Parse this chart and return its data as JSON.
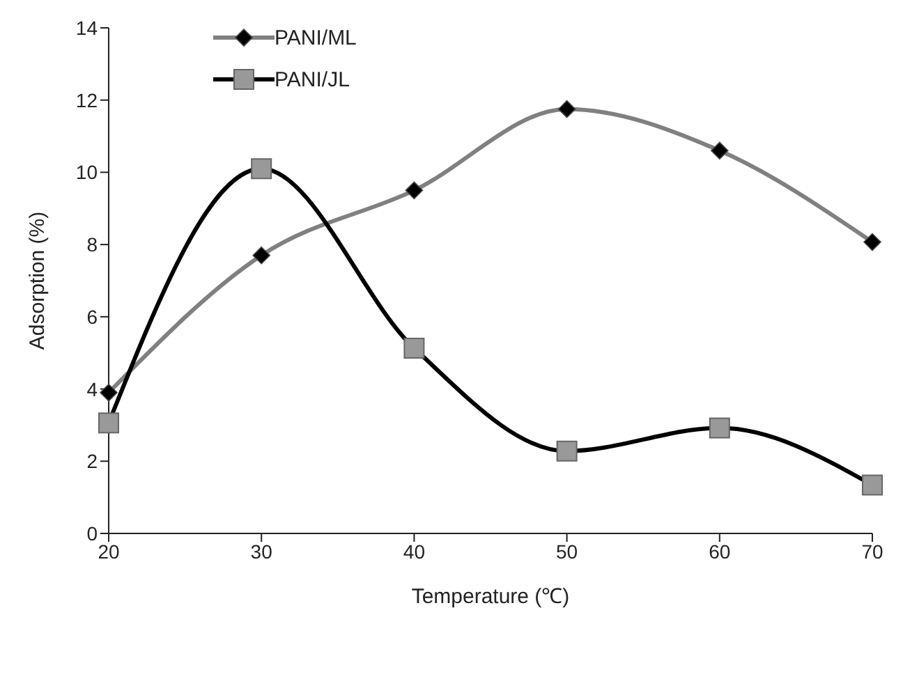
{
  "chart_data": {
    "type": "line",
    "xlabel": "Temperature (℃)",
    "ylabel": "Adsorption (%)",
    "categories": [
      "20",
      "30",
      "40",
      "50",
      "60",
      "70"
    ],
    "series": [
      {
        "name": "PANI/ML",
        "color": "#808080",
        "marker": "diamond",
        "values": [
          3.9,
          7.7,
          9.5,
          11.75,
          10.6,
          8.07
        ]
      },
      {
        "name": "PANI/JL",
        "color": "#000000",
        "marker": "square",
        "values": [
          3.06,
          10.1,
          5.13,
          2.28,
          2.92,
          1.34
        ]
      }
    ],
    "ylim": [
      0,
      14
    ],
    "yticks": [
      0,
      2,
      4,
      6,
      8,
      10,
      12,
      14
    ],
    "grid": false,
    "legend": "top left"
  }
}
